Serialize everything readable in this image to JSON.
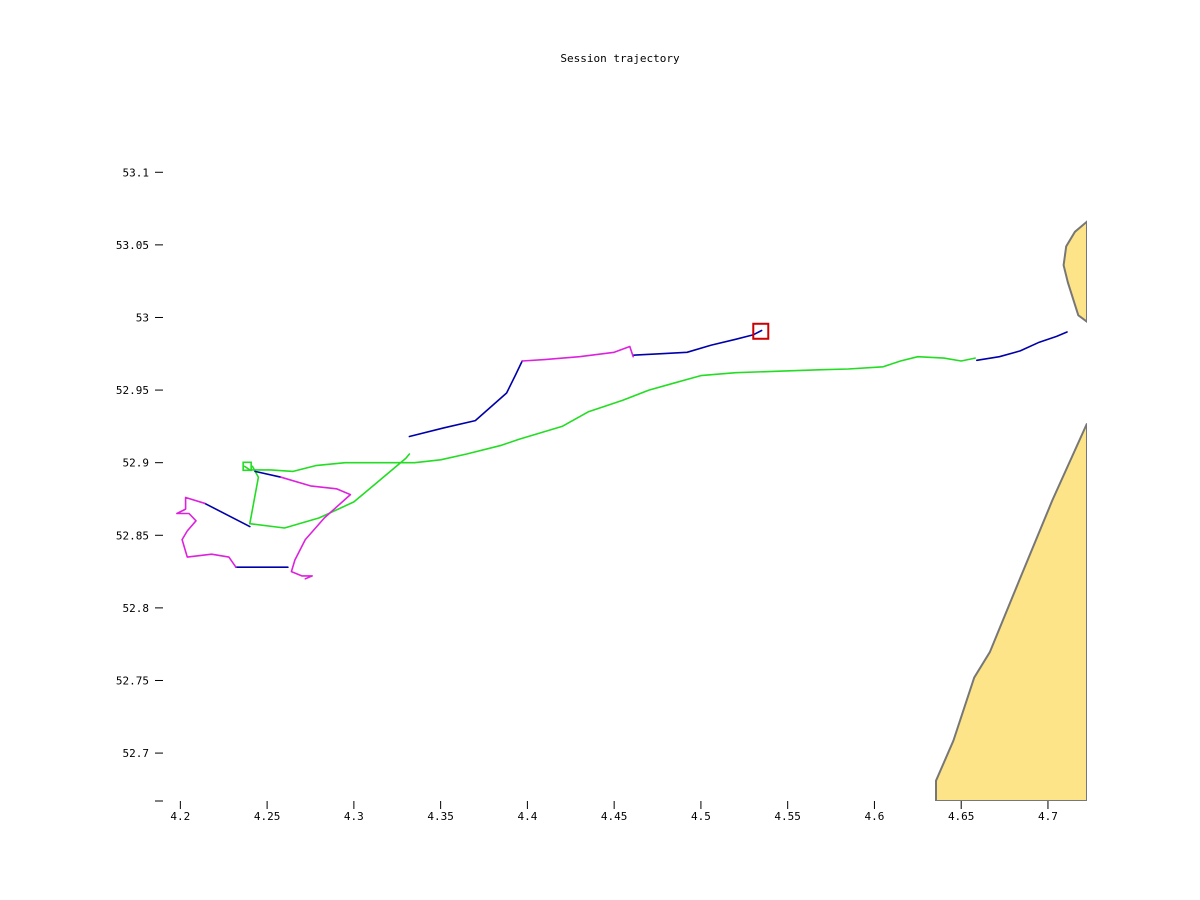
{
  "chart_data": {
    "type": "line",
    "title": "Session trajectory",
    "xlabel": "",
    "ylabel": "",
    "xlim": [
      4.19,
      4.7225
    ],
    "ylim": [
      52.667,
      53.136
    ],
    "x_ticks": [
      4.2,
      4.25,
      4.3,
      4.35,
      4.4,
      4.45,
      4.5,
      4.55,
      4.6,
      4.65,
      4.7
    ],
    "x_tick_labels": [
      "4.2",
      "4.25",
      "4.3",
      "4.35",
      "4.4",
      "4.45",
      "4.5",
      "4.55",
      "4.6",
      "4.65",
      "4.7"
    ],
    "y_ticks": [
      53.1,
      53.05,
      53.0,
      52.95,
      52.9,
      52.85,
      52.8,
      52.75,
      52.7
    ],
    "y_tick_labels": [
      "53.1",
      "53.05",
      "53",
      "52.95",
      "52.9",
      "52.85",
      "52.8",
      "52.75",
      "52.7"
    ],
    "grid": false,
    "legend": "none",
    "colors": {
      "green_track": "#22dd22",
      "blue_track": "#0000aa",
      "magenta_track": "#dd22dd",
      "marker": "#cc0000",
      "land_fill": "#fde488",
      "land_edge": "#777777",
      "axis": "#000000"
    },
    "land_polygons": [
      {
        "color_key": "land_fill",
        "points": [
          [
            4.7225,
            53.066
          ],
          [
            4.7155,
            53.059
          ],
          [
            4.7105,
            53.049
          ],
          [
            4.709,
            53.036
          ],
          [
            4.7115,
            53.024
          ],
          [
            4.7175,
            53.0015
          ],
          [
            4.7225,
            52.997
          ]
        ]
      },
      {
        "color_key": "land_fill",
        "points": [
          [
            4.7225,
            52.927
          ],
          [
            4.7025,
            52.874
          ],
          [
            4.6835,
            52.819
          ],
          [
            4.6665,
            52.7695
          ],
          [
            4.6575,
            52.752
          ],
          [
            4.6455,
            52.7085
          ],
          [
            4.6355,
            52.681
          ],
          [
            4.6355,
            52.667
          ],
          [
            4.7225,
            52.667
          ]
        ]
      }
    ],
    "series": [
      {
        "color_key": "green_track",
        "points": [
          [
            4.237,
            52.8975
          ],
          [
            4.24,
            52.895
          ],
          [
            4.252,
            52.895
          ],
          [
            4.265,
            52.894
          ],
          [
            4.278,
            52.898
          ],
          [
            4.295,
            52.9
          ],
          [
            4.315,
            52.9
          ],
          [
            4.335,
            52.9
          ],
          [
            4.35,
            52.902
          ],
          [
            4.365,
            52.906
          ],
          [
            4.385,
            52.912
          ],
          [
            4.395,
            52.916
          ],
          [
            4.42,
            52.925
          ],
          [
            4.435,
            52.935
          ],
          [
            4.455,
            52.943
          ],
          [
            4.47,
            52.95
          ],
          [
            4.485,
            52.955
          ],
          [
            4.5,
            52.96
          ],
          [
            4.52,
            52.962
          ],
          [
            4.545,
            52.963
          ],
          [
            4.57,
            52.964
          ],
          [
            4.585,
            52.9645
          ],
          [
            4.605,
            52.966
          ],
          [
            4.615,
            52.97
          ],
          [
            4.625,
            52.973
          ],
          [
            4.64,
            52.972
          ],
          [
            4.65,
            52.97
          ],
          [
            4.658,
            52.972
          ]
        ]
      },
      {
        "color_key": "green_track",
        "points": [
          [
            4.2415,
            52.8975
          ],
          [
            4.245,
            52.89
          ],
          [
            4.24,
            52.858
          ],
          [
            4.26,
            52.855
          ],
          [
            4.28,
            52.862
          ],
          [
            4.3,
            52.873
          ],
          [
            4.315,
            52.888
          ],
          [
            4.33,
            52.903
          ],
          [
            4.332,
            52.906
          ]
        ]
      },
      {
        "color_key": "blue_track",
        "points": [
          [
            4.332,
            52.918
          ],
          [
            4.352,
            52.924
          ],
          [
            4.37,
            52.929
          ],
          [
            4.388,
            52.948
          ],
          [
            4.393,
            52.96
          ],
          [
            4.397,
            52.97
          ]
        ]
      },
      {
        "color_key": "blue_track",
        "points": [
          [
            4.461,
            52.974
          ],
          [
            4.476,
            52.975
          ],
          [
            4.492,
            52.976
          ],
          [
            4.506,
            52.981
          ],
          [
            4.52,
            52.985
          ],
          [
            4.53,
            52.988
          ],
          [
            4.535,
            52.991
          ]
        ]
      },
      {
        "color_key": "blue_track",
        "points": [
          [
            4.659,
            52.9705
          ],
          [
            4.672,
            52.973
          ],
          [
            4.684,
            52.977
          ],
          [
            4.695,
            52.983
          ],
          [
            4.705,
            52.987
          ],
          [
            4.711,
            52.99
          ]
        ]
      },
      {
        "color_key": "blue_track",
        "points": [
          [
            4.243,
            52.894
          ],
          [
            4.258,
            52.89
          ]
        ]
      },
      {
        "color_key": "blue_track",
        "points": [
          [
            4.214,
            52.872
          ],
          [
            4.24,
            52.856
          ]
        ]
      },
      {
        "color_key": "blue_track",
        "points": [
          [
            4.232,
            52.828
          ],
          [
            4.24,
            52.828
          ],
          [
            4.262,
            52.828
          ]
        ]
      },
      {
        "color_key": "magenta_track",
        "points": [
          [
            4.397,
            52.97
          ],
          [
            4.41,
            52.971
          ],
          [
            4.43,
            52.973
          ],
          [
            4.45,
            52.976
          ],
          [
            4.459,
            52.98
          ],
          [
            4.461,
            52.973
          ]
        ]
      },
      {
        "color_key": "magenta_track",
        "points": [
          [
            4.258,
            52.89
          ],
          [
            4.275,
            52.884
          ],
          [
            4.29,
            52.882
          ],
          [
            4.298,
            52.878
          ],
          [
            4.283,
            52.862
          ],
          [
            4.272,
            52.847
          ],
          [
            4.266,
            52.833
          ],
          [
            4.264,
            52.825
          ],
          [
            4.27,
            52.822
          ],
          [
            4.276,
            52.822
          ],
          [
            4.272,
            52.82
          ]
        ]
      },
      {
        "color_key": "magenta_track",
        "points": [
          [
            4.214,
            52.872
          ],
          [
            4.203,
            52.876
          ],
          [
            4.203,
            52.868
          ],
          [
            4.198,
            52.865
          ],
          [
            4.205,
            52.865
          ],
          [
            4.209,
            52.86
          ],
          [
            4.204,
            52.853
          ],
          [
            4.201,
            52.847
          ],
          [
            4.204,
            52.835
          ],
          [
            4.218,
            52.837
          ],
          [
            4.228,
            52.835
          ],
          [
            4.232,
            52.828
          ]
        ]
      }
    ],
    "markers": [
      {
        "shape": "square",
        "color_key": "green_track",
        "x": 4.2385,
        "y": 52.8975
      },
      {
        "shape": "square",
        "color_key": "marker",
        "x": 4.5345,
        "y": 52.9905
      }
    ]
  }
}
